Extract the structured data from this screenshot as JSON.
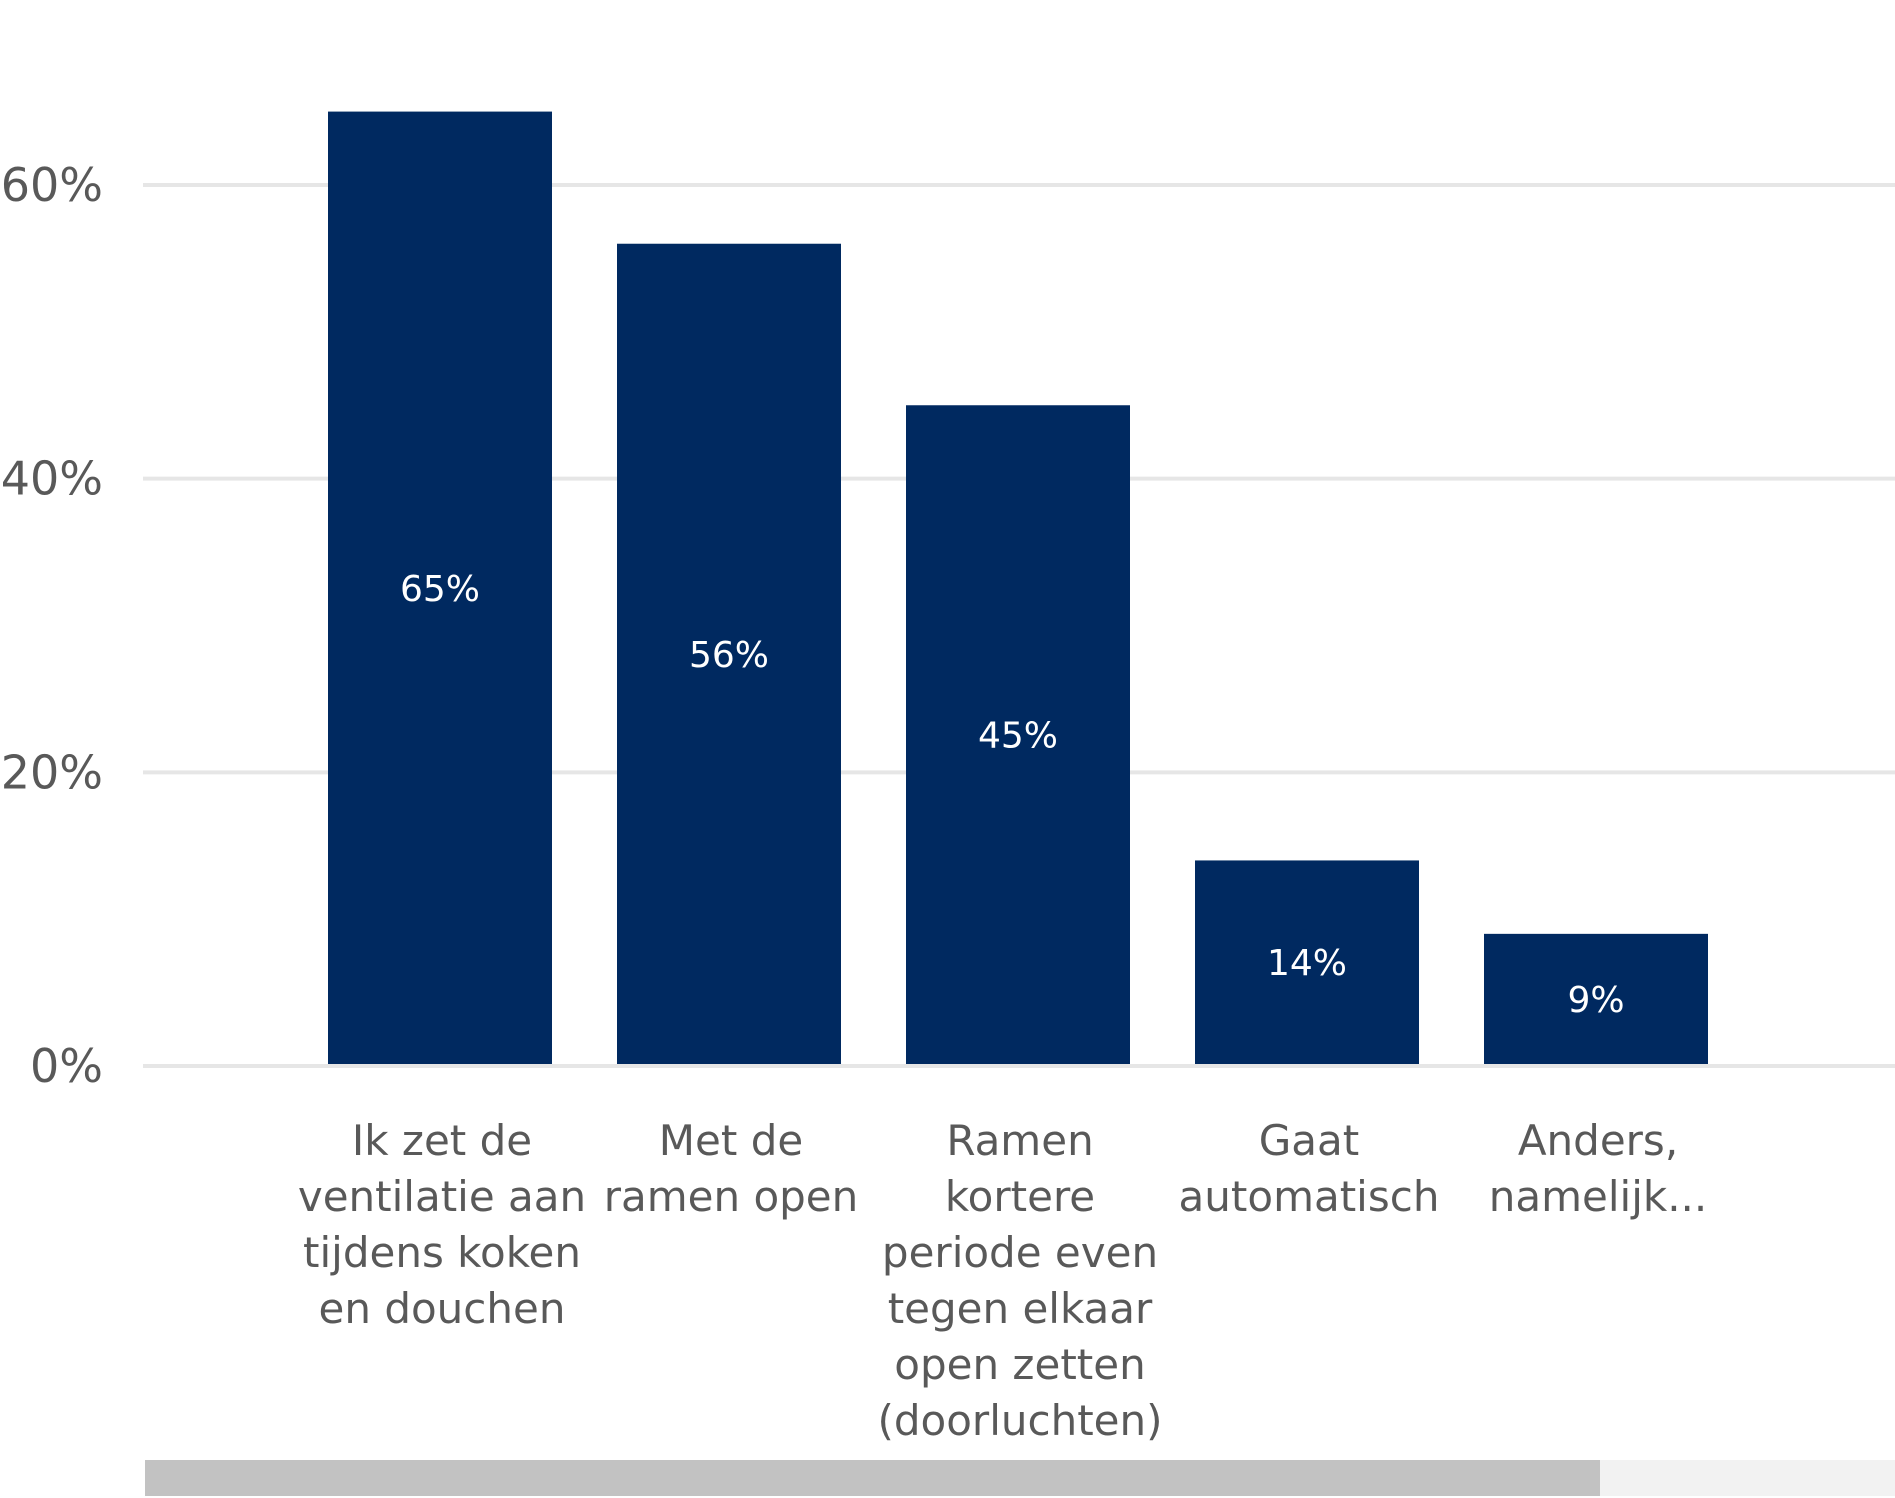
{
  "chart_data": {
    "type": "bar",
    "categories": [
      [
        "Ik zet de",
        "ventilatie aan",
        "tijdens koken",
        "en douchen"
      ],
      [
        "Met de",
        "ramen open"
      ],
      [
        "Ramen",
        "kortere",
        "periode even",
        "tegen elkaar",
        "open zetten",
        "(doorluchten)"
      ],
      [
        "Gaat",
        "automatisch"
      ],
      [
        "Anders,",
        "namelijk..."
      ]
    ],
    "values": [
      65,
      56,
      45,
      14,
      9
    ],
    "data_labels": [
      "65%",
      "56%",
      "45%",
      "14%",
      "9%"
    ],
    "yticks": [
      0,
      20,
      40,
      60
    ],
    "ytick_labels": [
      "0%",
      "20%",
      "40%",
      "60%"
    ],
    "ylim": [
      0,
      72
    ],
    "bar_color": "#002960",
    "grid": true,
    "title": "",
    "xlabel": "",
    "ylabel": ""
  }
}
